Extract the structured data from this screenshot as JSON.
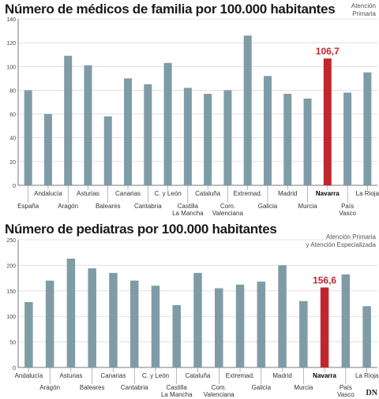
{
  "source_credit": "DN",
  "colors": {
    "bar": "#7f9ca6",
    "highlight": "#c0272d",
    "axis": "#555555",
    "grid": "#cfcfcf"
  },
  "chart_data": [
    {
      "type": "bar",
      "title": "Número de médicos de familia por 100.000 habitantes",
      "note": [
        "Atención",
        "Primaria"
      ],
      "ylim": [
        0,
        140
      ],
      "yticks": [
        0,
        20,
        40,
        60,
        80,
        100,
        120,
        140
      ],
      "grid": true,
      "highlight": "Navarra",
      "highlight_value_label": "106,7",
      "categories": [
        "España",
        "Andalucía",
        "Aragón",
        "Asturias",
        "Baleares",
        "Canarias",
        "Cantabria",
        "C. y León",
        "Castilla La Mancha",
        "Cataluña",
        "Com. Valenciana",
        "Extremad.",
        "Galicia",
        "Madrid",
        "Murcia",
        "Navarra",
        "País Vasco",
        "La Rioja"
      ],
      "labels": [
        [
          "España"
        ],
        [
          "Andalucía"
        ],
        [
          "Aragón"
        ],
        [
          "Asturias"
        ],
        [
          "Baleares"
        ],
        [
          "Canarias"
        ],
        [
          "Cantabria"
        ],
        [
          "C. y León"
        ],
        [
          "Castilla",
          "La Mancha"
        ],
        [
          "Cataluña"
        ],
        [
          "Com.",
          "Valenciana"
        ],
        [
          "Extremad."
        ],
        [
          "Galicia"
        ],
        [
          "Madrid"
        ],
        [
          "Murcia"
        ],
        [
          "Navarra"
        ],
        [
          "País",
          "Vasco"
        ],
        [
          "La Rioja"
        ]
      ],
      "values": [
        80,
        60,
        109,
        101,
        58,
        90,
        85,
        103,
        82,
        77,
        80,
        126,
        92,
        77,
        73,
        106.7,
        78,
        95
      ]
    },
    {
      "type": "bar",
      "title": "Número de pediatras por 100.000 habitantes",
      "note": [
        "Atención Primaria",
        "y Atención Especializada"
      ],
      "ylim": [
        0,
        250
      ],
      "yticks": [
        0,
        50,
        100,
        150,
        200,
        250
      ],
      "grid": true,
      "highlight": "Navarra",
      "highlight_value_label": "156,6",
      "categories": [
        "Andalucía",
        "Aragón",
        "Asturias",
        "Baleares",
        "Canarias",
        "Cantabria",
        "C. y León",
        "Castilla La Mancha",
        "Cataluña",
        "Com. Valenciana",
        "Extremad.",
        "Galicia",
        "Madrid",
        "Murcia",
        "Navarra",
        "País Vasco",
        "La Rioja"
      ],
      "labels": [
        [
          "Andalucía"
        ],
        [
          "Aragón"
        ],
        [
          "Asturias"
        ],
        [
          "Baleares"
        ],
        [
          "Canarias"
        ],
        [
          "Cantabria"
        ],
        [
          "C. y León"
        ],
        [
          "Castilla",
          "La Mancha"
        ],
        [
          "Cataluña"
        ],
        [
          "Com.",
          "Valenciana"
        ],
        [
          "Extremad."
        ],
        [
          "Galicia"
        ],
        [
          "Madrid"
        ],
        [
          "Murcia"
        ],
        [
          "Navarra"
        ],
        [
          "País",
          "Vasco"
        ],
        [
          "La Rioja"
        ]
      ],
      "values": [
        128,
        170,
        213,
        194,
        185,
        170,
        160,
        122,
        185,
        155,
        162,
        168,
        200,
        130,
        156.6,
        182,
        120
      ]
    }
  ]
}
